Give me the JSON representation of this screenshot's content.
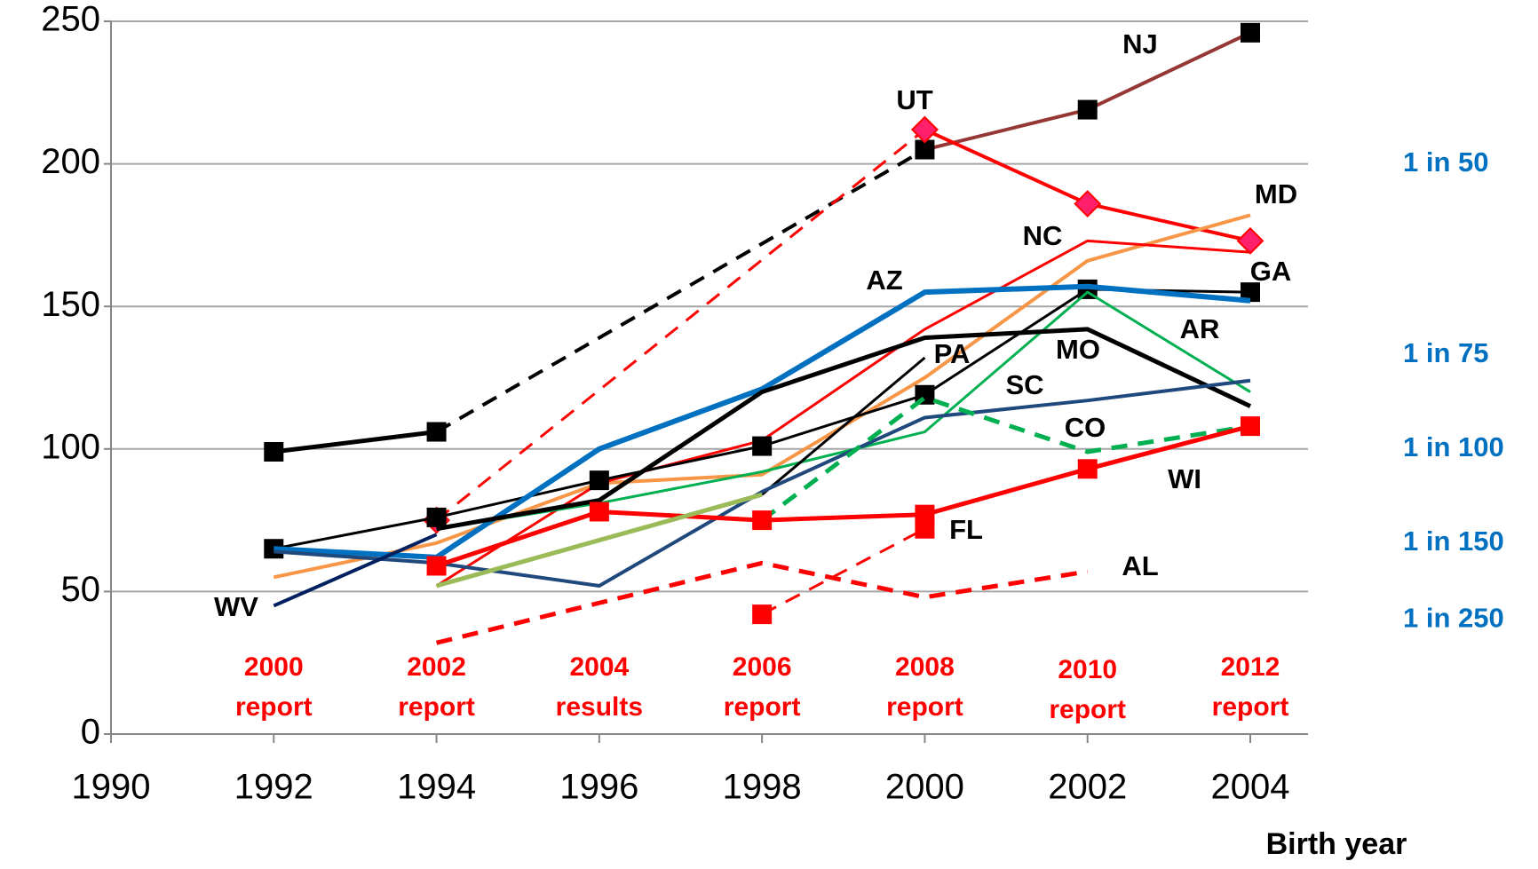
{
  "chart_data": {
    "type": "line",
    "xlabel": "Birth year",
    "xlim": [
      1990,
      2004
    ],
    "xticks": [
      1990,
      1992,
      1994,
      1996,
      1998,
      2000,
      2002,
      2004
    ],
    "ylim": [
      0,
      250
    ],
    "yticks": [
      0,
      50,
      100,
      150,
      200,
      250
    ],
    "grid": true,
    "series": [
      {
        "name": "NJ",
        "color": "#953735",
        "width": 4,
        "marker": "square",
        "marker_color": "#000000",
        "x": [
          2000,
          2002,
          2004
        ],
        "values": [
          205,
          219,
          246
        ]
      },
      {
        "color": "#000000",
        "width": 5,
        "marker": "square",
        "marker_color": "#000000",
        "x": [
          1992,
          1994
        ],
        "values": [
          99,
          106
        ]
      },
      {
        "color": "#000000",
        "width": 4,
        "dashed": true,
        "x": [
          1994,
          2000
        ],
        "values": [
          106,
          205
        ]
      },
      {
        "name": "UT",
        "color": "#ff0000",
        "width": 4,
        "marker": "diamond",
        "marker_color": "#ff1f6b",
        "x": [
          2000,
          2002,
          2004
        ],
        "values": [
          212,
          186,
          173
        ]
      },
      {
        "color": "#ff0000",
        "width": 3,
        "dashed": true,
        "marker": "diamond",
        "marker_color": "#ff1f6b",
        "x": [
          1994,
          2000
        ],
        "values": [
          75,
          212
        ]
      },
      {
        "name": "MD",
        "color": "#f79646",
        "width": 4,
        "x": [
          1992,
          1994,
          1996,
          1998,
          2000,
          2002,
          2004
        ],
        "values": [
          55,
          67,
          88,
          91,
          125,
          166,
          182
        ]
      },
      {
        "name": "NC",
        "color": "#ff0000",
        "width": 3,
        "x": [
          1994,
          1996,
          1998,
          2000,
          2002,
          2004
        ],
        "values": [
          52,
          88,
          103,
          142,
          173,
          169
        ]
      },
      {
        "name": "GA",
        "color": "#000000",
        "width": 3,
        "marker": "square",
        "marker_color": "#000000",
        "x": [
          1992,
          1994,
          1996,
          1998,
          2000,
          2002,
          2004
        ],
        "values": [
          65,
          76,
          89,
          101,
          119,
          156,
          155
        ]
      },
      {
        "name": "AZ",
        "color": "#0070c0",
        "width": 6,
        "x": [
          1992,
          1994,
          1996,
          1998,
          2000,
          2002,
          2004
        ],
        "values": [
          65,
          62,
          100,
          121,
          155,
          157,
          152
        ]
      },
      {
        "name": "AR",
        "color": "#00b050",
        "width": 3,
        "x": [
          1994,
          1996,
          1998,
          2000,
          2002,
          2004
        ],
        "values": [
          72,
          81,
          92,
          106,
          155,
          120
        ]
      },
      {
        "name": "MO",
        "color": "#000000",
        "width": 5,
        "x": [
          1994,
          1996,
          1998,
          2000,
          2002,
          2004
        ],
        "values": [
          72,
          82,
          120,
          139,
          142,
          115
        ]
      },
      {
        "name": "PA",
        "color": "#000000",
        "width": 3,
        "x": [
          1998,
          2000
        ],
        "values": [
          84,
          132
        ]
      },
      {
        "name": "SC",
        "color": "#1f497d",
        "width": 4,
        "x": [
          1992,
          1994,
          1996,
          1998,
          2000,
          2002,
          2004
        ],
        "values": [
          64,
          60,
          52,
          85,
          111,
          117,
          124
        ]
      },
      {
        "name": "WV",
        "color": "#002060",
        "width": 4,
        "x": [
          1992,
          1994
        ],
        "values": [
          45,
          70
        ]
      },
      {
        "name": "CO",
        "color": "#00b050",
        "width": 5,
        "dashed": true,
        "x": [
          1998,
          2000,
          2002,
          2004
        ],
        "values": [
          75,
          118,
          99,
          108
        ]
      },
      {
        "name": "WI",
        "color": "#ff0000",
        "width": 5,
        "marker": "square",
        "marker_color": "#ff0000",
        "x": [
          1994,
          1996,
          1998,
          2000,
          2002,
          2004
        ],
        "values": [
          59,
          78,
          75,
          77,
          93,
          108
        ]
      },
      {
        "name": "FL",
        "color": "#ff0000",
        "width": 3,
        "dashed": true,
        "marker": "square",
        "marker_color": "#ff0000",
        "x": [
          1998,
          2000
        ],
        "values": [
          42,
          72
        ]
      },
      {
        "name": "AL",
        "color": "#ff0000",
        "width": 5,
        "dashed": true,
        "x": [
          1994,
          1996,
          1998,
          2000,
          2002
        ],
        "values": [
          32,
          46,
          60,
          48,
          57
        ]
      },
      {
        "color": "#9bbb59",
        "width": 5,
        "x": [
          1994,
          1996,
          1998
        ],
        "values": [
          52,
          68,
          84
        ]
      }
    ],
    "report_labels": [
      {
        "x": 1992,
        "lines": [
          "2000",
          "report"
        ]
      },
      {
        "x": 1994,
        "lines": [
          "2002",
          "report"
        ]
      },
      {
        "x": 1996,
        "lines": [
          "2004",
          "results"
        ]
      },
      {
        "x": 1998,
        "lines": [
          "2006",
          "report"
        ]
      },
      {
        "x": 2000,
        "lines": [
          "2008",
          "report"
        ]
      },
      {
        "x": 2002,
        "lines": [
          "2010",
          "report"
        ]
      },
      {
        "x": 2004,
        "lines": [
          "2012",
          "report"
        ]
      }
    ],
    "ratio_labels": [
      {
        "value": 200,
        "label": "1 in 50"
      },
      {
        "value": 133,
        "label": "1 in 75"
      },
      {
        "value": 100,
        "label": "1 in 100"
      },
      {
        "value": 67,
        "label": "1 in 150"
      },
      {
        "value": 40,
        "label": "1 in 250"
      }
    ]
  }
}
